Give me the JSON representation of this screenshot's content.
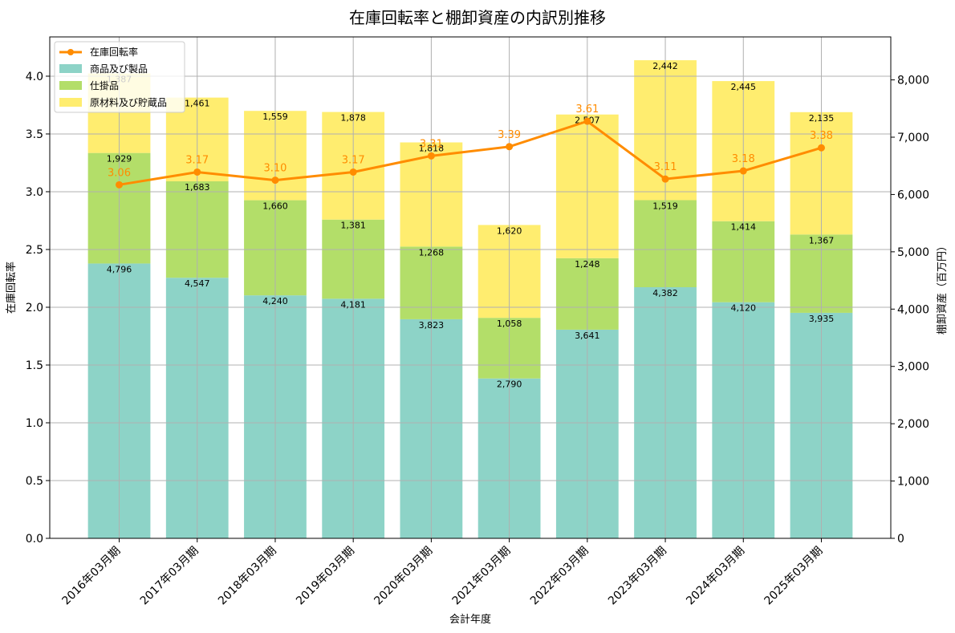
{
  "chart_data": {
    "type": "bar",
    "title": "在庫回転率と棚卸資産の内訳別推移",
    "xlabel": "会計年度",
    "ylabel_left": "在庫回転率",
    "ylabel_right": "棚卸資産（百万円）",
    "categories": [
      "2016年03月期",
      "2017年03月期",
      "2018年03月期",
      "2019年03月期",
      "2020年03月期",
      "2021年03月期",
      "2022年03月期",
      "2023年03月期",
      "2024年03月期",
      "2025年03月期"
    ],
    "stacked": true,
    "series": [
      {
        "name": "商品及び製品",
        "axis": "right",
        "color": "#8dd3c7",
        "values": [
          4796,
          4547,
          4240,
          4181,
          3823,
          2790,
          3641,
          4382,
          4120,
          3935
        ],
        "labels": [
          "4,796",
          "4,547",
          "4,240",
          "4,181",
          "3,823",
          "2,790",
          "3,641",
          "4,382",
          "4,120",
          "3,935"
        ]
      },
      {
        "name": "仕掛品",
        "axis": "right",
        "color": "#b3de69",
        "values": [
          1929,
          1683,
          1660,
          1381,
          1268,
          1058,
          1248,
          1519,
          1414,
          1367
        ],
        "labels": [
          "1,929",
          "1,683",
          "1,660",
          "1,381",
          "1,268",
          "1,058",
          "1,248",
          "1,519",
          "1,414",
          "1,367"
        ]
      },
      {
        "name": "原材料及び貯蔵品",
        "axis": "right",
        "color": "#ffed6f",
        "values": [
          1387,
          1461,
          1559,
          1878,
          1818,
          1620,
          2507,
          2442,
          2445,
          2135
        ],
        "labels": [
          "1,387",
          "1,461",
          "1,559",
          "1,878",
          "1,818",
          "1,620",
          "2,507",
          "2,442",
          "2,445",
          "2,135"
        ]
      }
    ],
    "line_series": {
      "name": "在庫回転率",
      "axis": "left",
      "color": "#ff8c00",
      "values": [
        3.06,
        3.17,
        3.1,
        3.17,
        3.31,
        3.39,
        3.61,
        3.11,
        3.18,
        3.38
      ],
      "labels": [
        "3.06",
        "3.17",
        "3.10",
        "3.17",
        "3.31",
        "3.39",
        "3.61",
        "3.11",
        "3.18",
        "3.38"
      ]
    },
    "ylim_left": [
      0,
      4.34
    ],
    "yticks_left": [
      "0.0",
      "0.5",
      "1.0",
      "1.5",
      "2.0",
      "2.5",
      "3.0",
      "3.5",
      "4.0"
    ],
    "ylim_right": [
      0,
      8750
    ],
    "yticks_right": [
      "0",
      "1,000",
      "2,000",
      "3,000",
      "4,000",
      "5,000",
      "6,000",
      "7,000",
      "8,000"
    ],
    "grid": true,
    "legend_position": "top-left"
  }
}
